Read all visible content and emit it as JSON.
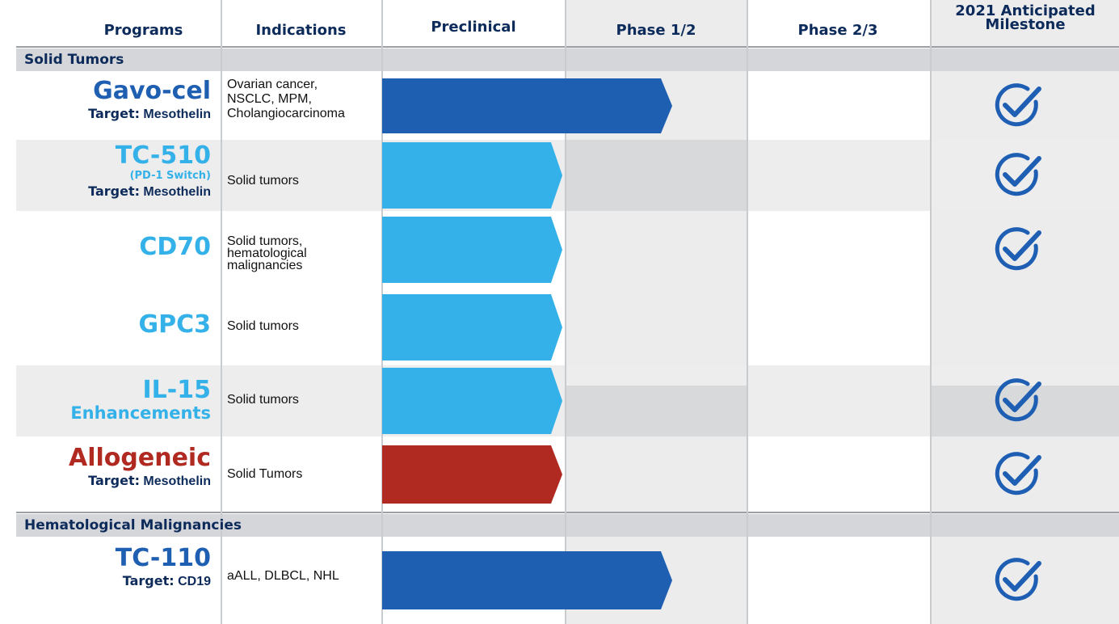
{
  "headers": {
    "programs": "Programs",
    "indications": "Indications",
    "preclinical": "Preclinical",
    "phase12": "Phase 1/2",
    "phase23": "Phase 2/3",
    "milestone_line1": "2021 Anticipated",
    "milestone_line2": "Milestone"
  },
  "sections": {
    "solid": "Solid Tumors",
    "heme": "Hematological Malignancies"
  },
  "colors": {
    "dark_blue": "#1f5fb1",
    "light_blue": "#33b1e8",
    "red": "#b02a21",
    "check": "#1e5fb3",
    "navy_text": "#0d2b5a"
  },
  "programs": [
    {
      "name": "Gavo-cel",
      "sub": "",
      "target_label": "Target:",
      "target": "Mesothelin",
      "indication": "Ovarian cancer,\nNSCLC, MPM,\nCholangiocarcinoma",
      "stage": "Phase 1/2",
      "milestone": true
    },
    {
      "name": "TC-510",
      "sub": "(PD-1 Switch)",
      "target_label": "Target:",
      "target": "Mesothelin",
      "indication": "Solid tumors",
      "stage": "Preclinical",
      "milestone": true
    },
    {
      "name": "CD70",
      "sub": "",
      "target_label": "",
      "target": "",
      "indication": "Solid tumors,\nhematological\nmalignancies",
      "stage": "Preclinical",
      "milestone": true
    },
    {
      "name": "GPC3",
      "sub": "",
      "target_label": "",
      "target": "",
      "indication": "Solid tumors",
      "stage": "Preclinical",
      "milestone": false
    },
    {
      "name": "IL-15",
      "sub": "Enhancements",
      "target_label": "",
      "target": "",
      "indication": "Solid tumors",
      "stage": "Preclinical",
      "milestone": true
    },
    {
      "name": "Allogeneic",
      "sub": "",
      "target_label": "Target:",
      "target": "Mesothelin",
      "indication": "Solid Tumors",
      "stage": "Preclinical",
      "milestone": true
    },
    {
      "name": "TC-110",
      "sub": "",
      "target_label": "Target:",
      "target": "CD19",
      "indication": "aALL, DLBCL, NHL",
      "stage": "Phase 1/2",
      "milestone": true
    }
  ]
}
